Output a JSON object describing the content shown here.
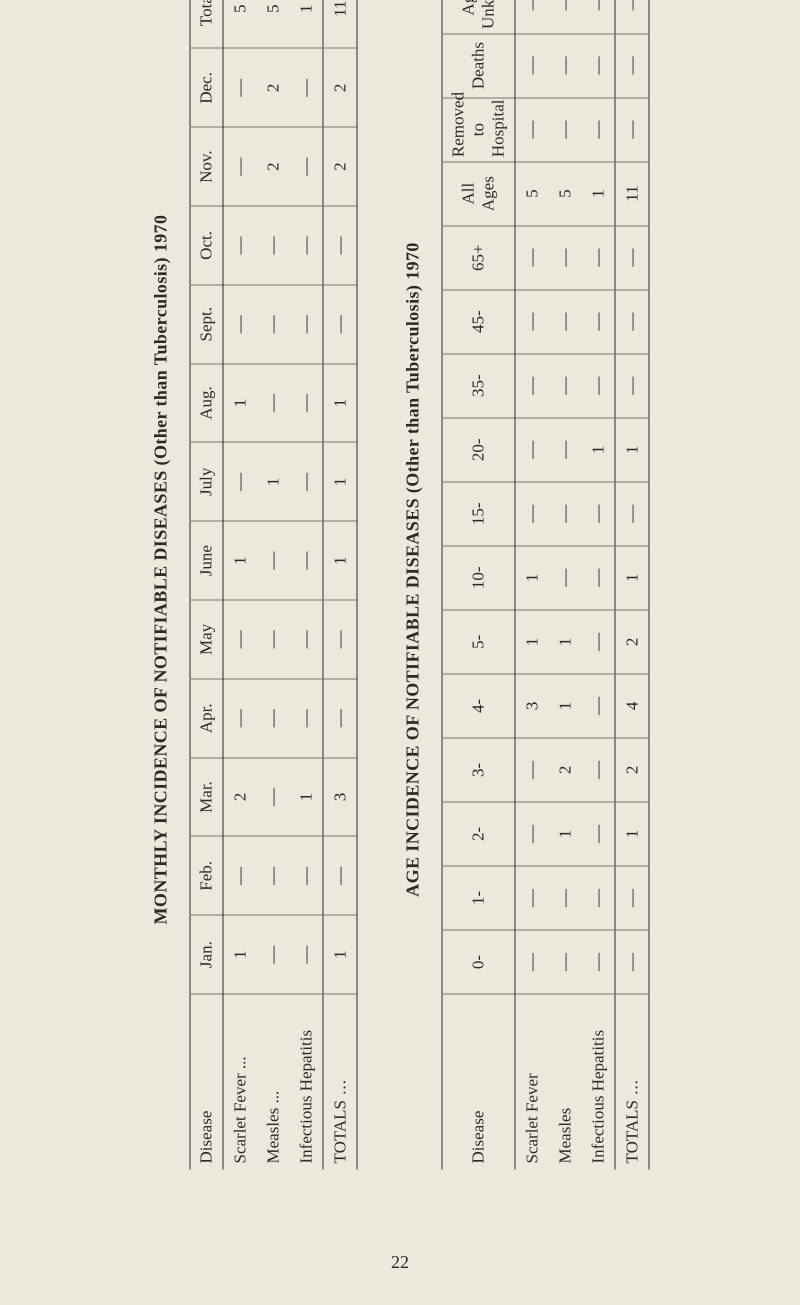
{
  "page_number": "22",
  "table1": {
    "title": "MONTHLY INCIDENCE OF NOTIFIABLE DISEASES (Other than Tuberculosis) 1970",
    "col_disease": "Disease",
    "months": [
      "Jan.",
      "Feb.",
      "Mar.",
      "Apr.",
      "May",
      "June",
      "July",
      "Aug.",
      "Sept.",
      "Oct.",
      "Nov.",
      "Dec.",
      "Total"
    ],
    "rows": [
      {
        "label": "Scarlet Fever ...",
        "cells": [
          "1",
          "—",
          "2",
          "—",
          "—",
          "1",
          "—",
          "1",
          "—",
          "—",
          "—",
          "—",
          "5"
        ]
      },
      {
        "label": "Measles ...",
        "cells": [
          "—",
          "—",
          "—",
          "—",
          "—",
          "—",
          "1",
          "—",
          "—",
          "—",
          "2",
          "2",
          "5"
        ]
      },
      {
        "label": "Infectious Hepatitis",
        "cells": [
          "—",
          "—",
          "1",
          "—",
          "—",
          "—",
          "—",
          "—",
          "—",
          "—",
          "—",
          "—",
          "1"
        ]
      }
    ],
    "totals": {
      "label": "TOTALS",
      "cells": [
        "1",
        "—",
        "3",
        "—",
        "—",
        "1",
        "1",
        "1",
        "—",
        "—",
        "2",
        "2",
        "11"
      ]
    }
  },
  "table2": {
    "title": "AGE INCIDENCE OF NOTIFIABLE DISEASES (Other than Tuberculosis) 1970",
    "col_disease": "Disease",
    "ages": [
      "0-",
      "1-",
      "2-",
      "3-",
      "4-",
      "5-",
      "10-",
      "15-",
      "20-",
      "35-",
      "45-",
      "65+",
      "All Ages",
      "Removed to Hospital",
      "Deaths",
      "Age Unknown"
    ],
    "rows": [
      {
        "label": "Scarlet Fever",
        "cells": [
          "—",
          "—",
          "—",
          "—",
          "3",
          "1",
          "1",
          "—",
          "—",
          "—",
          "—",
          "—",
          "5",
          "—",
          "—",
          "—"
        ]
      },
      {
        "label": "Measles",
        "cells": [
          "—",
          "—",
          "1",
          "2",
          "1",
          "1",
          "—",
          "—",
          "—",
          "—",
          "—",
          "—",
          "5",
          "—",
          "—",
          "—"
        ]
      },
      {
        "label": "Infectious Hepatitis",
        "cells": [
          "—",
          "—",
          "—",
          "—",
          "—",
          "—",
          "—",
          "—",
          "1",
          "—",
          "—",
          "—",
          "1",
          "—",
          "—",
          "—"
        ]
      }
    ],
    "totals": {
      "label": "TOTALS",
      "cells": [
        "—",
        "—",
        "1",
        "2",
        "4",
        "2",
        "1",
        "—",
        "1",
        "—",
        "—",
        "—",
        "11",
        "—",
        "—",
        "—"
      ]
    }
  }
}
